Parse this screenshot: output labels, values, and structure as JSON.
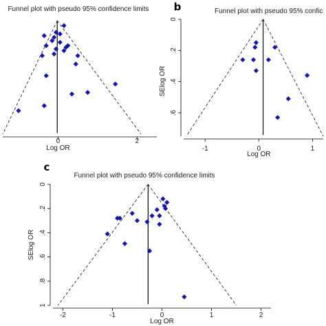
{
  "chart_data": [
    {
      "type": "scatter",
      "panel_label": "",
      "title": "Funnel plot with pseudo 95% confidence limits",
      "xlabel": "Log OR",
      "ylabel": "",
      "xlim": [
        -1.4,
        2.5
      ],
      "ylim": [
        0,
        0.68
      ],
      "y_reversed": true,
      "x_ticks": [
        "0",
        "2"
      ],
      "x_tick_values": [
        0,
        2
      ],
      "y_ticks": [],
      "y_tick_values": [],
      "pooled_log_or": -0.02,
      "funnel_x_range": [
        -1.4,
        2.1
      ],
      "points": [
        {
          "x": 0.15,
          "y": 0.03
        },
        {
          "x": -0.05,
          "y": 0.07
        },
        {
          "x": 0.05,
          "y": 0.08
        },
        {
          "x": -0.35,
          "y": 0.09
        },
        {
          "x": -0.1,
          "y": 0.1
        },
        {
          "x": -0.15,
          "y": 0.12
        },
        {
          "x": 0.05,
          "y": 0.13
        },
        {
          "x": -0.3,
          "y": 0.15
        },
        {
          "x": 0.25,
          "y": 0.15
        },
        {
          "x": 0.2,
          "y": 0.16
        },
        {
          "x": -0.05,
          "y": 0.17
        },
        {
          "x": 0.15,
          "y": 0.18
        },
        {
          "x": -0.1,
          "y": 0.2
        },
        {
          "x": 0.5,
          "y": 0.21
        },
        {
          "x": -0.4,
          "y": 0.21
        },
        {
          "x": 0.45,
          "y": 0.26
        },
        {
          "x": -0.3,
          "y": 0.33
        },
        {
          "x": 1.45,
          "y": 0.38
        },
        {
          "x": 0.75,
          "y": 0.43
        },
        {
          "x": 0.35,
          "y": 0.44
        },
        {
          "x": -0.35,
          "y": 0.51
        },
        {
          "x": -1.0,
          "y": 0.54
        }
      ]
    },
    {
      "type": "scatter",
      "panel_label": "b",
      "title": "Funnel plot with pseudo 95% confic",
      "xlabel": "Log OR",
      "ylabel": "SElog OR",
      "xlim": [
        -1.4,
        1.2
      ],
      "ylim": [
        0,
        0.75
      ],
      "y_reversed": true,
      "x_ticks": [
        "-1",
        "0",
        "1"
      ],
      "x_tick_values": [
        -1,
        0,
        1
      ],
      "y_ticks": [
        "0",
        ".2",
        ".4",
        ".6"
      ],
      "y_tick_values": [
        0,
        0.2,
        0.4,
        0.6
      ],
      "pooled_log_or": 0.08,
      "funnel_x_range": [
        -1.35,
        1.2
      ],
      "points": [
        {
          "x": -0.05,
          "y": 0.15
        },
        {
          "x": -0.07,
          "y": 0.18
        },
        {
          "x": 0.3,
          "y": 0.18
        },
        {
          "x": -0.3,
          "y": 0.26
        },
        {
          "x": -0.1,
          "y": 0.26
        },
        {
          "x": 0.18,
          "y": 0.26
        },
        {
          "x": -0.05,
          "y": 0.33
        },
        {
          "x": 0.9,
          "y": 0.36
        },
        {
          "x": 0.55,
          "y": 0.51
        },
        {
          "x": 0.35,
          "y": 0.63
        }
      ]
    },
    {
      "type": "scatter",
      "panel_label": "c",
      "title": "Funnel plot with pseudo 95% confidence limits",
      "xlabel": "Log OR",
      "ylabel": "SElog OR",
      "xlim": [
        -2.2,
        2.2
      ],
      "ylim": [
        0,
        1.0
      ],
      "y_reversed": true,
      "x_ticks": [
        "-2",
        "-1",
        "0",
        "1",
        "2"
      ],
      "x_tick_values": [
        -2,
        -1,
        0,
        1,
        2
      ],
      "y_ticks": [
        "0",
        ".2",
        ".4",
        ".6",
        ".8",
        "1"
      ],
      "y_tick_values": [
        0,
        0.2,
        0.4,
        0.6,
        0.8,
        1
      ],
      "pooled_log_or": -0.28,
      "funnel_x_range": [
        -2.1,
        1.5
      ],
      "points": [
        {
          "x": 0.02,
          "y": 0.12
        },
        {
          "x": 0.1,
          "y": 0.15
        },
        {
          "x": 0.05,
          "y": 0.18
        },
        {
          "x": 0.07,
          "y": 0.2
        },
        {
          "x": -0.1,
          "y": 0.21
        },
        {
          "x": -0.6,
          "y": 0.24
        },
        {
          "x": -0.2,
          "y": 0.26
        },
        {
          "x": -0.05,
          "y": 0.26
        },
        {
          "x": -0.85,
          "y": 0.28
        },
        {
          "x": -0.9,
          "y": 0.28
        },
        {
          "x": -0.5,
          "y": 0.3
        },
        {
          "x": -0.3,
          "y": 0.31
        },
        {
          "x": -0.05,
          "y": 0.33
        },
        {
          "x": -1.1,
          "y": 0.41
        },
        {
          "x": -0.75,
          "y": 0.49
        },
        {
          "x": -0.25,
          "y": 0.55
        },
        {
          "x": 0.45,
          "y": 0.93
        }
      ]
    }
  ]
}
